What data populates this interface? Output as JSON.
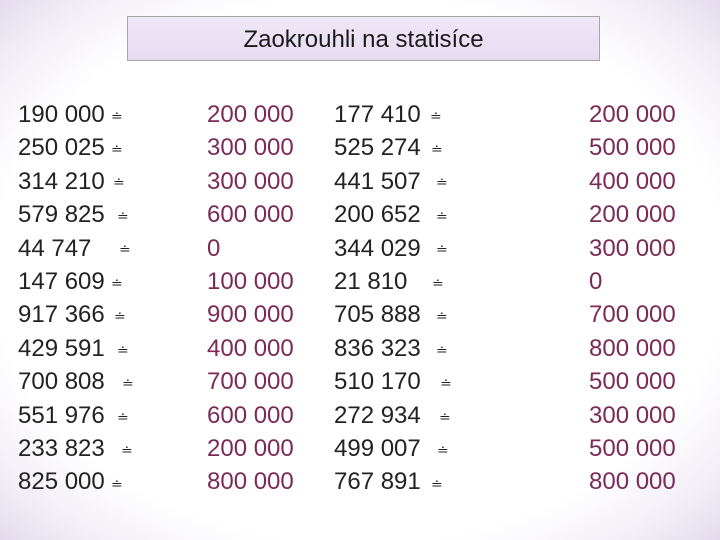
{
  "title": "Zaokrouhli na statisíce",
  "approx_symbol": "≐",
  "columns": {
    "left": [
      "190 000",
      "250 025",
      "314 210",
      "579 825",
      "44 747",
      "147 609",
      "917 366",
      "429 591",
      "700 808",
      "551 976",
      "233 823",
      "825 000"
    ],
    "left_answers": [
      "200 000",
      "300 000",
      "300 000",
      "600 000",
      "0",
      "100 000",
      "900 000",
      "400 000",
      "700 000",
      "600 000",
      "200 000",
      "800 000"
    ],
    "right": [
      "177 410",
      "525 274",
      "441 507",
      "200 652",
      "344 029",
      "21 810",
      "705 888",
      "836 323",
      "510 170",
      "272 934",
      "499 007",
      "767 891"
    ],
    "right_answers": [
      "200 000",
      "500 000",
      "400 000",
      "200 000",
      "300 000",
      "0",
      "700 000",
      "800 000",
      "500 000",
      "300 000",
      "500 000",
      "800 000"
    ]
  },
  "colors": {
    "answer": "#7b2a57",
    "text": "#222222",
    "title_bg": "#e7dbf1"
  }
}
